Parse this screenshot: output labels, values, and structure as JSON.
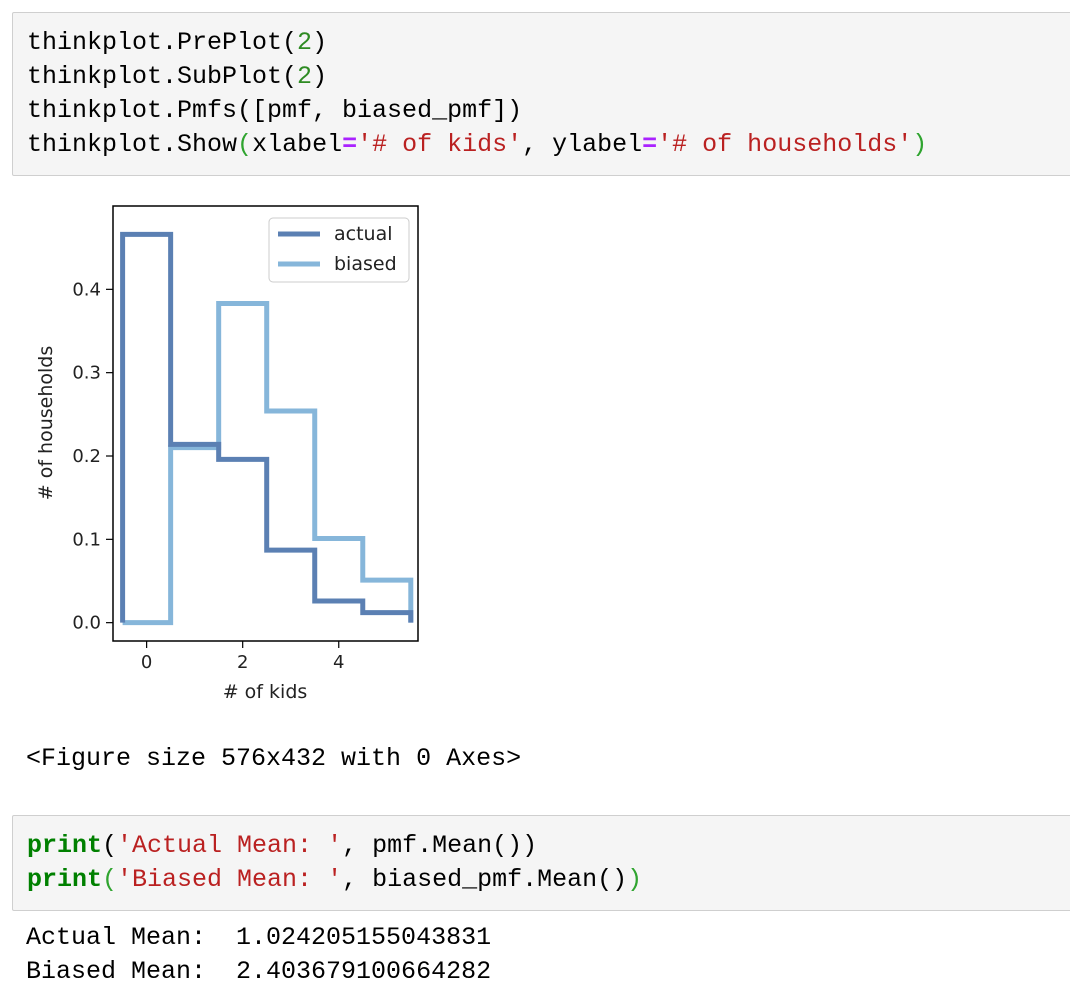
{
  "cell1": {
    "lines": [
      {
        "parts": [
          {
            "t": "thinkplot.PrePlot(",
            "c": ""
          },
          {
            "t": "2",
            "c": "num"
          },
          {
            "t": ")",
            "c": ""
          }
        ]
      },
      {
        "parts": [
          {
            "t": "thinkplot.SubPlot(",
            "c": ""
          },
          {
            "t": "2",
            "c": "num"
          },
          {
            "t": ")",
            "c": ""
          }
        ]
      },
      {
        "parts": [
          {
            "t": "thinkplot.Pmfs([pmf, biased_pmf])",
            "c": ""
          }
        ]
      },
      {
        "parts": [
          {
            "t": "thinkplot.Show",
            "c": ""
          },
          {
            "t": "(",
            "c": "pg"
          },
          {
            "t": "xlabel",
            "c": ""
          },
          {
            "t": "=",
            "c": "op"
          },
          {
            "t": "'# of kids'",
            "c": "str"
          },
          {
            "t": ", ylabel",
            "c": ""
          },
          {
            "t": "=",
            "c": "op"
          },
          {
            "t": "'# of households'",
            "c": "str"
          },
          {
            "t": ")",
            "c": "pg"
          }
        ]
      }
    ]
  },
  "figure_caption": "<Figure size 576x432 with 0 Axes>",
  "cell2": {
    "lines": [
      {
        "parts": [
          {
            "t": "print",
            "c": "kw"
          },
          {
            "t": "(",
            "c": ""
          },
          {
            "t": "'Actual Mean: '",
            "c": "str"
          },
          {
            "t": ", pmf.Mean())",
            "c": ""
          }
        ]
      },
      {
        "parts": [
          {
            "t": "print",
            "c": "kw"
          },
          {
            "t": "(",
            "c": "pg"
          },
          {
            "t": "'Biased Mean: '",
            "c": "str"
          },
          {
            "t": ", biased_pmf.Mean()",
            "c": ""
          },
          {
            "t": ")",
            "c": "pg"
          }
        ]
      }
    ]
  },
  "output": {
    "line1": "Actual Mean:  1.024205155043831",
    "line2": "Biased Mean:  2.403679100664282"
  },
  "colors": {
    "actual": "#5b80b3",
    "biased": "#86b6da"
  },
  "chart_data": {
    "type": "line",
    "step": true,
    "xlabel": "# of kids",
    "ylabel": "# of households",
    "xlim": [
      -0.7,
      5.65
    ],
    "ylim": [
      -0.022,
      0.5
    ],
    "xticks": [
      0,
      2,
      4
    ],
    "yticks": [
      0.0,
      0.1,
      0.2,
      0.3,
      0.4
    ],
    "legend_position": "upper right",
    "grid": false,
    "series": [
      {
        "name": "actual",
        "x": [
          0,
          1,
          2,
          3,
          4,
          5
        ],
        "values": [
          0.466,
          0.214,
          0.196,
          0.087,
          0.026,
          0.012
        ]
      },
      {
        "name": "biased",
        "x": [
          0,
          1,
          2,
          3,
          4,
          5
        ],
        "values": [
          0.0,
          0.21,
          0.383,
          0.254,
          0.101,
          0.051
        ]
      }
    ]
  }
}
